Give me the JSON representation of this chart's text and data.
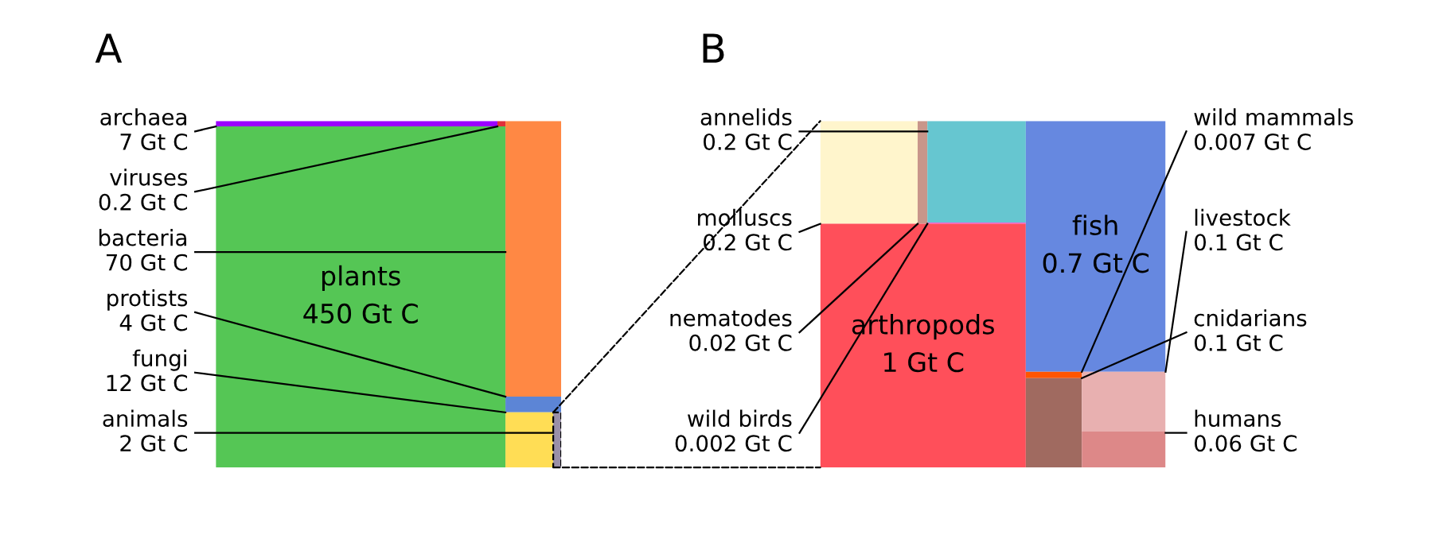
{
  "chart_data": [
    {
      "type": "other",
      "title": "A",
      "categories": [
        "archaea",
        "viruses",
        "plants",
        "bacteria",
        "protists",
        "fungi",
        "animals"
      ],
      "values": [
        7,
        0.2,
        450,
        70,
        4,
        12,
        2
      ],
      "value_labels": [
        "7 Gt C",
        "0.2 Gt C",
        "450 Gt C",
        "70 Gt C",
        "4 Gt C",
        "12 Gt C",
        "2 Gt C"
      ],
      "colors": [
        "#9b00ff",
        "#e0303a",
        "#55c655",
        "#ff8844",
        "#5c85d6",
        "#ffdd55",
        "#9a90a8"
      ]
    },
    {
      "type": "other",
      "title": "B",
      "categories": [
        "molluscs",
        "nematodes",
        "annelids",
        "wild birds",
        "arthropods",
        "fish",
        "wild mammals",
        "cnidarians",
        "livestock",
        "humans"
      ],
      "values": [
        0.2,
        0.02,
        0.2,
        0.002,
        1,
        0.7,
        0.007,
        0.1,
        0.1,
        0.06
      ],
      "value_labels": [
        "0.2 Gt C",
        "0.02 Gt C",
        "0.2 Gt C",
        "0.002 Gt C",
        "1 Gt C",
        "0.7 Gt C",
        "0.007 Gt C",
        "0.1 Gt C",
        "0.1 Gt C",
        "0.06 Gt C"
      ],
      "colors": [
        "#fff5cc",
        "#c8968a",
        "#66c6d0",
        "#ff33cc",
        "#ff4f5a",
        "#6688e0",
        "#ff5500",
        "#a06a60",
        "#e8b0b0",
        "#dd8888"
      ]
    }
  ]
}
